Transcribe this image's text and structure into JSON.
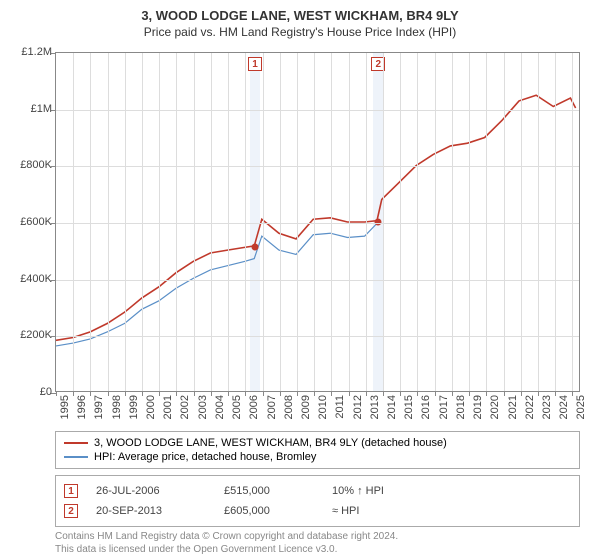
{
  "header": {
    "title": "3, WOOD LODGE LANE, WEST WICKHAM, BR4 9LY",
    "subtitle": "Price paid vs. HM Land Registry's House Price Index (HPI)"
  },
  "chart": {
    "type": "line",
    "background_color": "#ffffff",
    "grid_color": "#dddddd",
    "axis_color": "#888888",
    "label_fontsize": 11,
    "x": {
      "min": 1995,
      "max": 2025.5,
      "ticks": [
        1995,
        1996,
        1997,
        1998,
        1999,
        2000,
        2001,
        2002,
        2003,
        2004,
        2005,
        2006,
        2007,
        2008,
        2009,
        2010,
        2011,
        2012,
        2013,
        2014,
        2015,
        2016,
        2017,
        2018,
        2019,
        2020,
        2021,
        2022,
        2023,
        2024,
        2025
      ]
    },
    "y": {
      "min": 0,
      "max": 1200000,
      "ticks": [
        0,
        200000,
        400000,
        600000,
        800000,
        1000000,
        1200000
      ],
      "tick_labels": [
        "£0",
        "£200K",
        "£400K",
        "£600K",
        "£800K",
        "£1M",
        "£1.2M"
      ]
    },
    "series": [
      {
        "id": "property",
        "label": "3, WOOD LODGE LANE, WEST WICKHAM, BR4 9LY (detached house)",
        "color": "#c0392b",
        "width": 1.6,
        "x": [
          1995,
          1996,
          1997,
          1998,
          1999,
          2000,
          2001,
          2002,
          2003,
          2004,
          2005,
          2006,
          2006.56,
          2007,
          2008,
          2009,
          2010,
          2011,
          2012,
          2013,
          2013.72,
          2014,
          2015,
          2016,
          2017,
          2018,
          2019,
          2020,
          2021,
          2022,
          2023,
          2024,
          2025,
          2025.3
        ],
        "y": [
          180000,
          190000,
          210000,
          240000,
          280000,
          330000,
          370000,
          420000,
          460000,
          490000,
          500000,
          510000,
          515000,
          610000,
          560000,
          540000,
          610000,
          615000,
          600000,
          600000,
          605000,
          680000,
          740000,
          800000,
          840000,
          870000,
          880000,
          900000,
          960000,
          1030000,
          1050000,
          1010000,
          1040000,
          1005000
        ]
      },
      {
        "id": "hpi",
        "label": "HPI: Average price, detached house, Bromley",
        "color": "#5a8fc7",
        "width": 1.2,
        "x": [
          1995,
          1996,
          1997,
          1998,
          1999,
          2000,
          2001,
          2002,
          2003,
          2004,
          2005,
          2006,
          2006.56,
          2007,
          2008,
          2009,
          2010,
          2011,
          2012,
          2013,
          2013.72
        ],
        "y": [
          160000,
          170000,
          185000,
          210000,
          240000,
          290000,
          320000,
          365000,
          400000,
          430000,
          445000,
          460000,
          470000,
          550000,
          500000,
          485000,
          555000,
          560000,
          545000,
          550000,
          595000
        ]
      }
    ],
    "sale_markers": [
      {
        "n": "1",
        "x": 2006.56,
        "y": 515000
      },
      {
        "n": "2",
        "x": 2013.72,
        "y": 605000
      }
    ],
    "band_width_years": 0.6
  },
  "legend": {
    "items": [
      {
        "color": "#c0392b",
        "label_path": "chart.series.0.label"
      },
      {
        "color": "#5a8fc7",
        "label_path": "chart.series.1.label"
      }
    ]
  },
  "sales": [
    {
      "n": "1",
      "date": "26-JUL-2006",
      "price": "£515,000",
      "pct": "10% ↑ HPI"
    },
    {
      "n": "2",
      "date": "20-SEP-2013",
      "price": "£605,000",
      "pct": "≈ HPI"
    }
  ],
  "attribution": {
    "line1": "Contains HM Land Registry data © Crown copyright and database right 2024.",
    "line2": "This data is licensed under the Open Government Licence v3.0."
  }
}
